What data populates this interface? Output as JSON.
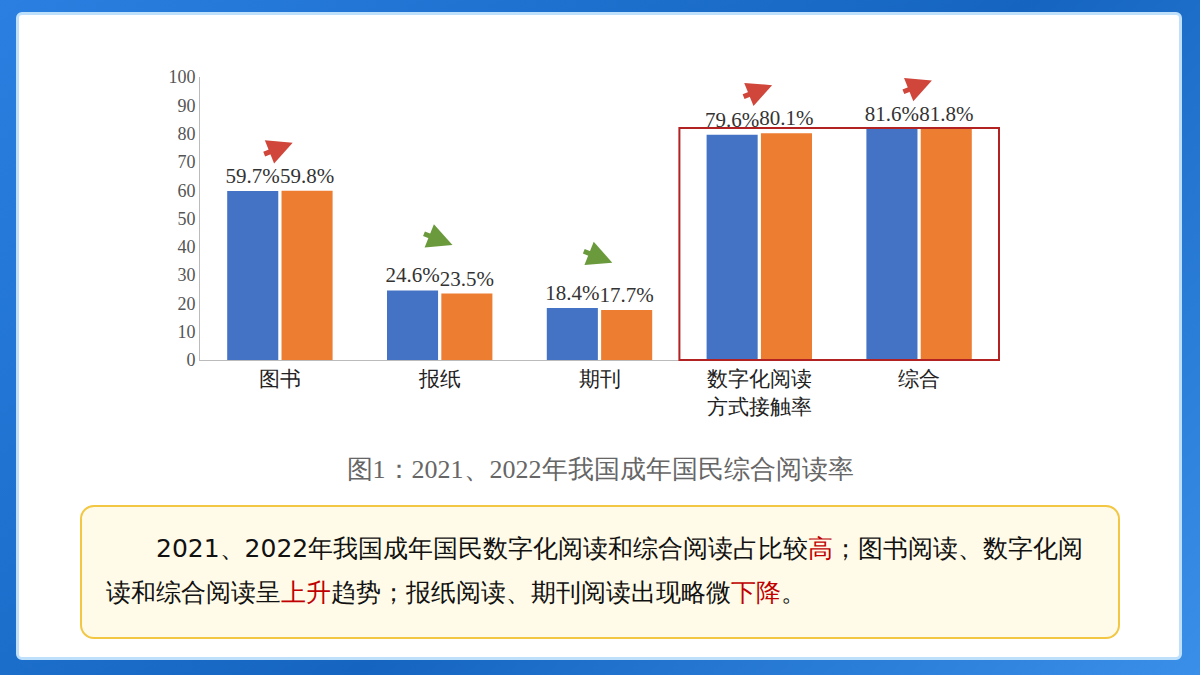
{
  "chart_data": {
    "type": "bar",
    "title": "图1：2021、2022年我国成年国民综合阅读率",
    "categories": [
      "图书",
      "报纸",
      "期刊",
      "数字化阅读方式接触率",
      "综合"
    ],
    "series": [
      {
        "color": "#4472c4",
        "values": [
          59.7,
          24.6,
          18.4,
          79.6,
          81.6
        ],
        "value_labels": [
          "59.7%",
          "24.6%",
          "18.4%",
          "79.6%",
          "81.6%"
        ]
      },
      {
        "color": "#ed7d31",
        "values": [
          59.8,
          23.5,
          17.7,
          80.1,
          81.8
        ],
        "value_labels": [
          "59.8%",
          "23.5%",
          "17.7%",
          "80.1%",
          "81.8%"
        ]
      }
    ],
    "ylim": [
      0,
      100
    ],
    "yticks": [
      0,
      10,
      20,
      30,
      40,
      50,
      60,
      70,
      80,
      90,
      100
    ],
    "grid": false,
    "data_labels": true
  },
  "summary": {
    "segments": [
      {
        "text": "2021、2022年我国成年国民数字化阅读和综合阅读占比较",
        "color": "#111111"
      },
      {
        "text": "高",
        "color": "#c00000"
      },
      {
        "text": "；图书阅读、数字化阅读和综合阅读呈",
        "color": "#111111"
      },
      {
        "text": "上升",
        "color": "#c00000"
      },
      {
        "text": "趋势；报纸阅读、期刊阅读出现略微",
        "color": "#111111"
      },
      {
        "text": "下降",
        "color": "#c00000"
      },
      {
        "text": "。",
        "color": "#111111"
      }
    ]
  }
}
